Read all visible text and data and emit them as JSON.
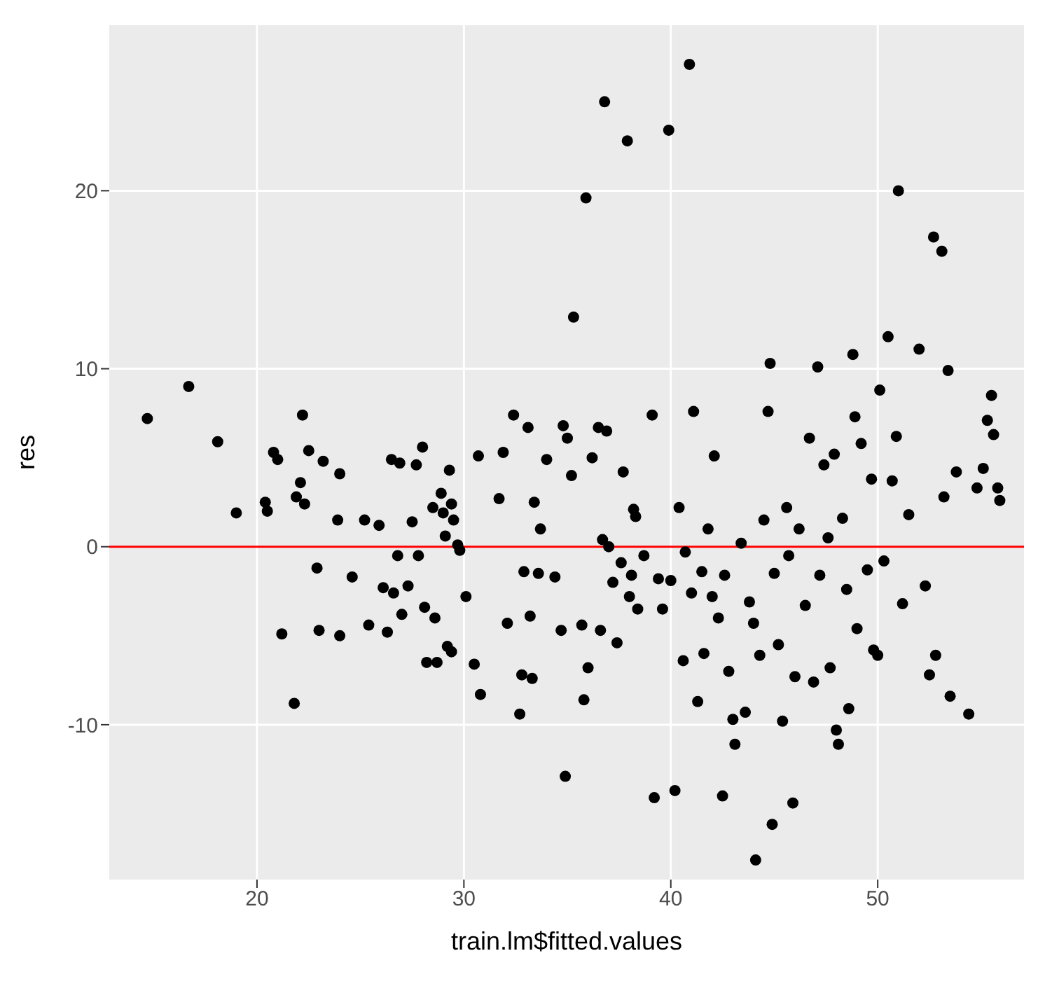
{
  "chart_data": {
    "type": "scatter",
    "xlabel": "train.lm$fitted.values",
    "ylabel": "res",
    "xlim": [
      12.86,
      57.07
    ],
    "ylim": [
      -18.7,
      29.3
    ],
    "xticks": [
      20,
      30,
      40,
      50
    ],
    "yticks": [
      -10,
      0,
      10,
      20
    ],
    "grid": true,
    "legend": false,
    "marker": "circle",
    "ref_lines": [
      {
        "axis": "y",
        "value": 0,
        "label": null,
        "color": "#ff0000"
      }
    ],
    "series": [
      {
        "color": "#000000",
        "x": [
          14.7,
          16.7,
          18.1,
          19,
          20.4,
          20.5,
          20.8,
          21,
          21.2,
          21.8,
          21.9,
          22.1,
          22.2,
          22.3,
          22.5,
          22.9,
          23,
          23.2,
          23.9,
          24,
          24,
          24.6,
          25.2,
          25.4,
          25.9,
          26.1,
          26.3,
          26.5,
          26.6,
          26.9,
          26.8,
          27,
          27.3,
          27.5,
          27.7,
          27.8,
          28,
          28.1,
          28.2,
          28.5,
          28.6,
          28.7,
          28.9,
          29,
          29.1,
          29.2,
          29.3,
          29.4,
          29.5,
          29.7,
          29.8,
          29.4,
          30.1,
          30.5,
          30.7,
          30.8,
          31.7,
          31.9,
          32.1,
          32.4,
          32.7,
          32.8,
          32.9,
          33.1,
          33.2,
          33.3,
          33.4,
          33.6,
          33.7,
          34,
          34.4,
          34.7,
          34.8,
          34.9,
          35,
          35.2,
          35.3,
          35.7,
          35.8,
          35.9,
          36,
          36.2,
          36.5,
          36.6,
          36.7,
          36.8,
          36.9,
          37,
          37.2,
          37.4,
          37.6,
          37.7,
          37.9,
          38,
          38.1,
          38.2,
          38.3,
          38.4,
          38.7,
          39.1,
          39.2,
          39.4,
          39.6,
          39.9,
          40,
          40.2,
          40.4,
          40.6,
          40.7,
          40.9,
          41,
          41.1,
          41.3,
          41.5,
          41.6,
          41.8,
          42,
          42.1,
          42.3,
          42.5,
          42.6,
          42.8,
          43,
          43.1,
          43.4,
          43.6,
          43.8,
          44,
          44.1,
          44.3,
          44.5,
          44.7,
          44.8,
          44.9,
          45,
          45.2,
          45.4,
          45.6,
          45.7,
          45.9,
          46,
          46.2,
          46.5,
          46.7,
          46.9,
          47.1,
          47.2,
          47.4,
          47.6,
          47.7,
          47.9,
          48,
          48.1,
          48.3,
          48.5,
          48.6,
          48.8,
          48.9,
          49,
          49.2,
          49.5,
          49.7,
          49.8,
          50,
          50.1,
          50.3,
          50.5,
          50.7,
          50.9,
          51,
          51.2,
          51.5,
          52,
          52.3,
          52.5,
          52.7,
          52.8,
          53.1,
          53.2,
          53.4,
          53.5,
          53.8,
          54.4,
          54.8,
          55.1,
          55.3,
          55.5,
          55.6,
          55.8,
          55.9
        ],
        "values": [
          7.2,
          9.0,
          5.9,
          1.9,
          2.5,
          2.0,
          5.3,
          4.9,
          -4.9,
          -8.8,
          2.8,
          3.6,
          7.4,
          2.4,
          5.4,
          -1.2,
          -4.7,
          4.8,
          1.5,
          4.1,
          -5,
          -1.7,
          1.5,
          -4.4,
          1.2,
          -2.3,
          -4.8,
          4.9,
          -2.6,
          4.7,
          -0.5,
          -3.8,
          -2.2,
          1.4,
          4.6,
          -0.5,
          5.6,
          -3.4,
          -6.5,
          2.2,
          -4,
          -6.5,
          3.0,
          1.9,
          0.6,
          -5.6,
          4.3,
          2.4,
          1.5,
          0.1,
          -0.2,
          -5.9,
          -2.8,
          -6.6,
          5.1,
          -8.3,
          2.7,
          5.3,
          -4.3,
          7.4,
          -9.4,
          -7.2,
          -1.4,
          6.7,
          -3.9,
          -7.4,
          2.5,
          -1.5,
          1,
          4.9,
          -1.7,
          -4.7,
          6.8,
          -12.9,
          6.1,
          4.0,
          12.9,
          -4.4,
          -8.6,
          19.6,
          -6.8,
          5,
          6.7,
          -4.7,
          0.4,
          25,
          6.5,
          0,
          -2,
          -5.4,
          -0.9,
          4.2,
          22.8,
          -2.8,
          -1.6,
          2.1,
          1.7,
          -3.5,
          -0.5,
          7.4,
          -14.1,
          -1.8,
          -3.5,
          23.4,
          -1.9,
          -13.7,
          2.2,
          -6.4,
          -0.3,
          27.1,
          -2.6,
          7.6,
          -8.7,
          -1.4,
          -6,
          1,
          -2.8,
          5.1,
          -4,
          -14,
          -1.6,
          -7,
          -9.7,
          -11.1,
          0.2,
          -9.3,
          -3.1,
          -4.3,
          -17.6,
          -6.1,
          1.5,
          7.6,
          10.3,
          -15.6,
          -1.5,
          -5.5,
          -9.8,
          2.2,
          -0.5,
          -14.4,
          -7.3,
          1.0,
          -3.3,
          6.1,
          -7.6,
          10.1,
          -1.6,
          4.6,
          0.5,
          -6.8,
          5.2,
          -10.3,
          -11.1,
          1.6,
          -2.4,
          -9.1,
          10.8,
          7.3,
          -4.6,
          5.8,
          -1.3,
          3.8,
          -5.8,
          -6.1,
          8.8,
          -0.8,
          11.8,
          3.7,
          6.2,
          20,
          -3.2,
          1.8,
          11.1,
          -2.2,
          -7.2,
          17.4,
          -6.1,
          16.6,
          2.8,
          9.9,
          -8.4,
          4.2,
          -9.4,
          3.3,
          4.4,
          7.1,
          8.5,
          6.3,
          3.3,
          2.6
        ]
      }
    ]
  }
}
